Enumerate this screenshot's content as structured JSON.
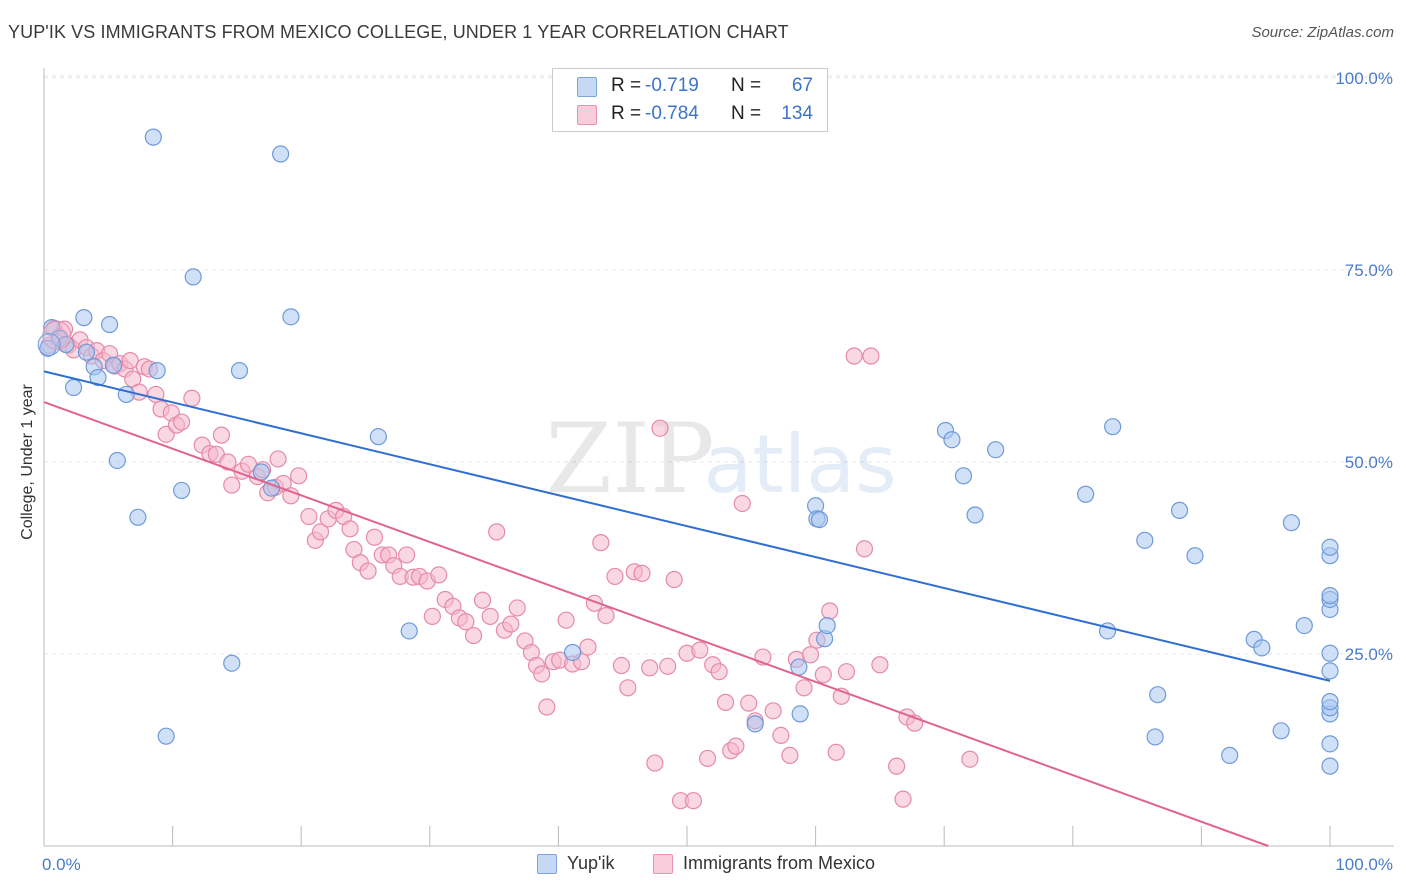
{
  "header": {
    "title": "YUP'IK VS IMMIGRANTS FROM MEXICO COLLEGE, UNDER 1 YEAR CORRELATION CHART",
    "source": "Source: ZipAtlas.com"
  },
  "watermark": {
    "zip": "ZIP",
    "atlas": "atlas"
  },
  "legend": {
    "rows": [
      {
        "r_label": "R =",
        "r_value": "-0.719",
        "n_label": "N =",
        "n_value": "67",
        "color": "#a9c6f0"
      },
      {
        "r_label": "R =",
        "r_value": "-0.784",
        "n_label": "N =",
        "n_value": "134",
        "color": "#f5b8cc"
      }
    ]
  },
  "bottom_legend": [
    {
      "label": "Yup'ik",
      "color": "#a9c6f0"
    },
    {
      "label": "Immigrants from Mexico",
      "color": "#f5b8cc"
    }
  ],
  "chart_data": {
    "type": "scatter",
    "title": "YUP'IK VS IMMIGRANTS FROM MEXICO COLLEGE, UNDER 1 YEAR CORRELATION CHART",
    "xlabel": "",
    "ylabel": "College, Under 1 year",
    "xlim": [
      0,
      100
    ],
    "ylim": [
      0,
      100
    ],
    "x_tick_labels": [
      "0.0%",
      "100.0%"
    ],
    "y_tick_labels": [
      "100.0%",
      "75.0%",
      "50.0%",
      "25.0%"
    ],
    "y_ticks": [
      100,
      75,
      50,
      25
    ],
    "grid": true,
    "colors": {
      "yupik_fill": "#a9c6f0",
      "yupik_stroke": "#6f9ad9",
      "yupik_line": "#2f6fd0",
      "mexico_fill": "#f5b8cc",
      "mexico_stroke": "#e58aa8",
      "mexico_line": "#e0648f",
      "grid": "#e4e4e4",
      "axis": "#bbbbbb"
    },
    "series": [
      {
        "name": "Yup'ik",
        "trend": {
          "x": [
            0,
            100
          ],
          "y": [
            61.8,
            21.5
          ]
        },
        "points": [
          [
            0.3,
            64.8
          ],
          [
            0.6,
            67.5
          ],
          [
            1.2,
            66.1
          ],
          [
            1.7,
            65.3
          ],
          [
            2.3,
            59.7
          ],
          [
            3.1,
            68.8
          ],
          [
            3.3,
            64.3
          ],
          [
            3.9,
            62.4
          ],
          [
            4.2,
            61.0
          ],
          [
            5.1,
            67.9
          ],
          [
            5.4,
            62.6
          ],
          [
            5.7,
            50.2
          ],
          [
            6.4,
            58.8
          ],
          [
            7.3,
            42.8
          ],
          [
            8.5,
            92.3
          ],
          [
            8.8,
            61.9
          ],
          [
            9.5,
            14.3
          ],
          [
            10.7,
            46.3
          ],
          [
            11.6,
            74.1
          ],
          [
            14.6,
            23.8
          ],
          [
            15.2,
            61.9
          ],
          [
            16.9,
            48.7
          ],
          [
            17.7,
            46.6
          ],
          [
            18.4,
            90.1
          ],
          [
            19.2,
            68.9
          ],
          [
            26.0,
            53.3
          ],
          [
            28.4,
            28.0
          ],
          [
            41.1,
            25.2
          ],
          [
            55.3,
            15.9
          ],
          [
            58.7,
            23.3
          ],
          [
            58.8,
            17.2
          ],
          [
            60.0,
            44.3
          ],
          [
            70.1,
            54.1
          ],
          [
            60.1,
            42.6
          ],
          [
            60.3,
            42.5
          ],
          [
            70.6,
            52.9
          ],
          [
            71.5,
            48.2
          ],
          [
            60.7,
            27.0
          ],
          [
            60.9,
            28.7
          ],
          [
            74.0,
            51.6
          ],
          [
            72.4,
            43.1
          ],
          [
            81.0,
            45.8
          ],
          [
            82.7,
            28.0
          ],
          [
            83.1,
            54.6
          ],
          [
            85.6,
            39.8
          ],
          [
            86.6,
            19.7
          ],
          [
            86.4,
            14.2
          ],
          [
            88.3,
            43.7
          ],
          [
            89.5,
            37.8
          ],
          [
            92.2,
            11.8
          ],
          [
            94.1,
            26.9
          ],
          [
            94.7,
            25.8
          ],
          [
            96.2,
            15.0
          ],
          [
            97.0,
            42.1
          ],
          [
            98.0,
            28.7
          ],
          [
            100.0,
            37.8
          ],
          [
            100.0,
            30.8
          ],
          [
            100.0,
            22.8
          ],
          [
            100.0,
            32.1
          ],
          [
            100.0,
            25.1
          ],
          [
            100.0,
            17.2
          ],
          [
            100.0,
            38.9
          ],
          [
            100.0,
            32.6
          ],
          [
            100.0,
            18.0
          ],
          [
            100.0,
            18.8
          ],
          [
            100.0,
            13.3
          ],
          [
            100.0,
            10.4
          ]
        ]
      },
      {
        "name": "Immigrants from Mexico",
        "trend": {
          "x": [
            0,
            95.2
          ],
          "y": [
            57.8,
            0
          ]
        },
        "points": [
          [
            0.4,
            65.2
          ],
          [
            0.8,
            67.4
          ],
          [
            1.2,
            66.3
          ],
          [
            1.6,
            67.3
          ],
          [
            1.9,
            65.2
          ],
          [
            2.3,
            64.6
          ],
          [
            2.8,
            65.9
          ],
          [
            3.3,
            64.9
          ],
          [
            3.7,
            63.8
          ],
          [
            4.1,
            64.5
          ],
          [
            4.6,
            63.2
          ],
          [
            5.1,
            64.1
          ],
          [
            5.5,
            62.5
          ],
          [
            5.9,
            62.8
          ],
          [
            6.3,
            62.1
          ],
          [
            6.7,
            63.2
          ],
          [
            6.9,
            60.8
          ],
          [
            7.4,
            59.1
          ],
          [
            7.8,
            62.4
          ],
          [
            8.2,
            62.1
          ],
          [
            8.7,
            58.8
          ],
          [
            9.1,
            56.9
          ],
          [
            9.5,
            53.6
          ],
          [
            9.9,
            56.4
          ],
          [
            10.3,
            54.8
          ],
          [
            10.7,
            55.2
          ],
          [
            11.5,
            58.3
          ],
          [
            12.3,
            52.2
          ],
          [
            12.9,
            51.1
          ],
          [
            13.4,
            51.0
          ],
          [
            13.8,
            53.5
          ],
          [
            14.3,
            50.0
          ],
          [
            14.6,
            47.0
          ],
          [
            15.4,
            48.8
          ],
          [
            15.9,
            49.7
          ],
          [
            16.6,
            48.1
          ],
          [
            17.0,
            49.0
          ],
          [
            17.4,
            46.0
          ],
          [
            18.0,
            46.7
          ],
          [
            18.2,
            50.4
          ],
          [
            18.6,
            47.2
          ],
          [
            19.2,
            45.6
          ],
          [
            19.8,
            48.2
          ],
          [
            20.6,
            42.9
          ],
          [
            21.1,
            39.8
          ],
          [
            21.5,
            40.9
          ],
          [
            22.1,
            42.6
          ],
          [
            22.7,
            43.7
          ],
          [
            23.3,
            42.9
          ],
          [
            23.8,
            41.3
          ],
          [
            24.1,
            38.6
          ],
          [
            24.6,
            36.9
          ],
          [
            25.2,
            35.8
          ],
          [
            25.7,
            40.2
          ],
          [
            26.3,
            37.9
          ],
          [
            26.8,
            37.9
          ],
          [
            27.2,
            36.5
          ],
          [
            27.7,
            35.1
          ],
          [
            28.2,
            37.9
          ],
          [
            28.7,
            35.0
          ],
          [
            29.2,
            35.1
          ],
          [
            29.8,
            34.5
          ],
          [
            30.2,
            29.9
          ],
          [
            30.7,
            35.3
          ],
          [
            31.2,
            32.1
          ],
          [
            31.8,
            31.2
          ],
          [
            32.3,
            29.7
          ],
          [
            32.8,
            29.2
          ],
          [
            33.4,
            27.4
          ],
          [
            34.1,
            32.0
          ],
          [
            34.7,
            29.9
          ],
          [
            35.2,
            40.9
          ],
          [
            35.8,
            28.1
          ],
          [
            36.3,
            28.9
          ],
          [
            36.8,
            31.0
          ],
          [
            37.4,
            26.7
          ],
          [
            37.9,
            25.2
          ],
          [
            38.3,
            23.5
          ],
          [
            38.7,
            22.4
          ],
          [
            39.1,
            18.1
          ],
          [
            39.6,
            24.0
          ],
          [
            40.1,
            24.2
          ],
          [
            40.6,
            29.4
          ],
          [
            41.1,
            23.7
          ],
          [
            41.8,
            24.0
          ],
          [
            42.3,
            25.9
          ],
          [
            42.8,
            31.6
          ],
          [
            43.3,
            39.5
          ],
          [
            43.7,
            30.0
          ],
          [
            44.4,
            35.1
          ],
          [
            44.9,
            23.5
          ],
          [
            45.4,
            20.6
          ],
          [
            45.9,
            35.7
          ],
          [
            46.5,
            35.5
          ],
          [
            47.1,
            23.2
          ],
          [
            47.5,
            10.8
          ],
          [
            47.9,
            54.4
          ],
          [
            48.5,
            23.4
          ],
          [
            49.0,
            34.7
          ],
          [
            49.5,
            5.9
          ],
          [
            50.0,
            25.1
          ],
          [
            50.5,
            5.9
          ],
          [
            51.0,
            25.5
          ],
          [
            51.6,
            11.4
          ],
          [
            52.0,
            23.6
          ],
          [
            52.5,
            22.7
          ],
          [
            53.0,
            18.7
          ],
          [
            53.4,
            12.4
          ],
          [
            53.8,
            13.0
          ],
          [
            54.3,
            44.6
          ],
          [
            54.8,
            18.6
          ],
          [
            55.3,
            16.3
          ],
          [
            55.9,
            24.6
          ],
          [
            56.7,
            17.6
          ],
          [
            57.3,
            14.4
          ],
          [
            58.0,
            11.8
          ],
          [
            58.5,
            24.3
          ],
          [
            59.1,
            20.6
          ],
          [
            59.6,
            24.9
          ],
          [
            60.1,
            26.8
          ],
          [
            60.6,
            22.3
          ],
          [
            61.1,
            30.6
          ],
          [
            61.6,
            12.2
          ],
          [
            62.0,
            19.5
          ],
          [
            62.4,
            22.7
          ],
          [
            63.0,
            63.8
          ],
          [
            63.8,
            38.7
          ],
          [
            64.3,
            63.8
          ],
          [
            65.0,
            23.6
          ],
          [
            66.3,
            10.4
          ],
          [
            66.8,
            6.1
          ],
          [
            67.1,
            16.8
          ],
          [
            67.7,
            16.0
          ],
          [
            72.0,
            11.3
          ]
        ]
      }
    ]
  }
}
